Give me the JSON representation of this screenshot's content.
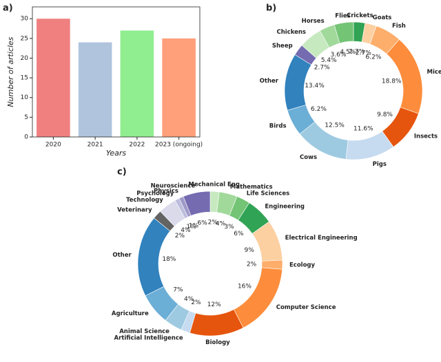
{
  "chart_data": [
    {
      "type": "bar",
      "label": "a)",
      "categories": [
        "2020",
        "2021",
        "2022",
        "2023 (ongoing)"
      ],
      "values": [
        30,
        24,
        27,
        25
      ],
      "colors": [
        "#f08080",
        "#b0c4de",
        "#90ee90",
        "#ffa07a"
      ],
      "xlabel": "Years",
      "ylabel": "Number of articles",
      "ylim": [
        0,
        33
      ],
      "yticks": [
        0,
        5,
        10,
        15,
        20,
        25,
        30
      ]
    },
    {
      "type": "donut",
      "label": "b)",
      "categories": [
        "Crickets",
        "Goats",
        "Fish",
        "Mice",
        "Insects",
        "Pigs",
        "Cows",
        "Birds",
        "Other",
        "Sheep",
        "Chickens",
        "Horses",
        "Flies"
      ],
      "values": [
        2.7,
        2.7,
        6.2,
        18.8,
        9.8,
        11.6,
        12.5,
        6.2,
        13.4,
        2.7,
        5.4,
        3.6,
        4.5
      ],
      "value_labels": [
        "2.7%",
        "2.7%",
        "6.2%",
        "18.8%",
        "9.8%",
        "11.6%",
        "12.5%",
        "6.2%",
        "13.4%",
        "2.7%",
        "5.4%",
        "3.6%",
        "4.5%"
      ],
      "colors": [
        "#31a354",
        "#fdd0a2",
        "#fdae6b",
        "#fd8d3c",
        "#e6550d",
        "#c6dbef",
        "#9ecae1",
        "#6baed6",
        "#3182bd",
        "#756bb1",
        "#c7e9c0",
        "#a1d99b",
        "#74c476"
      ]
    },
    {
      "type": "donut",
      "label": "c)",
      "categories": [
        "Mechanical Eng.",
        "Mathematics",
        "Life Sciences",
        "Engineering",
        "Electrical Engineering",
        "Ecology",
        "Computer Science",
        "Biology",
        "Artificial Intelligence",
        "Animal Science",
        "Agriculture",
        "Other",
        "Veterinary",
        "Technology",
        "Psychology",
        "Physics",
        "Neuroscience"
      ],
      "values": [
        2,
        4,
        3,
        6,
        9,
        2,
        16,
        12,
        2,
        4,
        7,
        18,
        2,
        4,
        1,
        1,
        6
      ],
      "value_labels": [
        "2%",
        "4%",
        "3%",
        "6%",
        "9%",
        "2%",
        "16%",
        "12%",
        "2%",
        "4%",
        "7%",
        "18%",
        "2%",
        "4%",
        "1%",
        "1%",
        "6%"
      ],
      "colors": [
        "#c7e9c0",
        "#a1d99b",
        "#74c476",
        "#31a354",
        "#fdd0a2",
        "#fdae6b",
        "#fd8d3c",
        "#e6550d",
        "#c6dbef",
        "#9ecae1",
        "#6baed6",
        "#3182bd",
        "#636363",
        "#dadaeb",
        "#bcbddc",
        "#9e9ac8",
        "#756bb1"
      ]
    }
  ]
}
